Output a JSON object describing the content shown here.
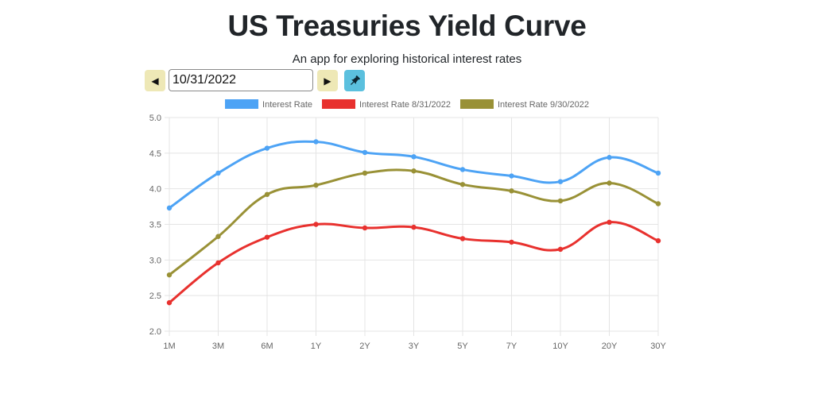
{
  "header": {
    "title": "US Treasuries Yield Curve",
    "subtitle": "An app for exploring historical interest rates"
  },
  "controls": {
    "date_value": "10/31/2022",
    "prev_icon": "caret-left-icon",
    "next_icon": "caret-right-icon",
    "pin_icon": "pushpin-icon"
  },
  "chart_data": {
    "type": "line",
    "categories": [
      "1M",
      "3M",
      "6M",
      "1Y",
      "2Y",
      "3Y",
      "5Y",
      "7Y",
      "10Y",
      "20Y",
      "30Y"
    ],
    "series": [
      {
        "name": "Interest Rate",
        "color": "#4da3f5",
        "values": [
          3.73,
          4.22,
          4.57,
          4.66,
          4.51,
          4.45,
          4.27,
          4.18,
          4.1,
          4.44,
          4.22
        ]
      },
      {
        "name": "Interest Rate 8/31/2022",
        "color": "#e8312e",
        "values": [
          2.4,
          2.96,
          3.32,
          3.5,
          3.45,
          3.46,
          3.3,
          3.25,
          3.15,
          3.53,
          3.27
        ]
      },
      {
        "name": "Interest Rate 9/30/2022",
        "color": "#999136",
        "values": [
          2.79,
          3.33,
          3.92,
          4.05,
          4.22,
          4.25,
          4.06,
          3.97,
          3.83,
          4.08,
          3.79
        ]
      }
    ],
    "y_ticks": [
      "5.0",
      "4.5",
      "4.0",
      "3.5",
      "3.0",
      "2.5",
      "2.0"
    ],
    "ylim": [
      2.0,
      5.0
    ],
    "grid": true,
    "legend_position": "top"
  }
}
